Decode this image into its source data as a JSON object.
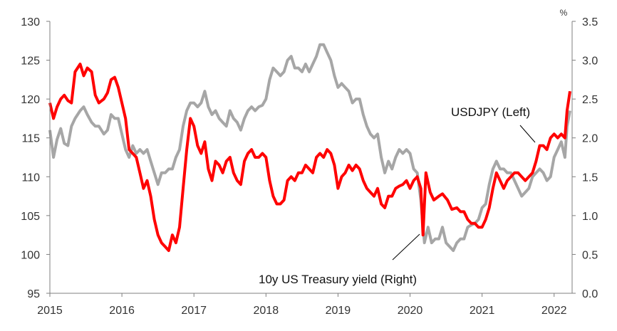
{
  "chart_data": {
    "type": "line",
    "x_label": "",
    "y_left": {
      "range": [
        95,
        130
      ],
      "ticks": [
        95,
        100,
        105,
        110,
        115,
        120,
        125,
        130
      ]
    },
    "y_right": {
      "range": [
        0.0,
        3.5
      ],
      "ticks": [
        "0.0",
        "0.5",
        "1.0",
        "1.5",
        "2.0",
        "2.5",
        "3.0",
        "3.5"
      ],
      "unit": "%"
    },
    "x_ticks": [
      "2015",
      "2016",
      "2017",
      "2018",
      "2019",
      "2020",
      "2021",
      "2022"
    ],
    "x_range": [
      2015.0,
      2022.25
    ],
    "grid": false,
    "series": [
      {
        "name": "USDJPY (Left)",
        "axis": "left",
        "color": "#ff0000",
        "points": [
          [
            2015.0,
            119.5
          ],
          [
            2015.05,
            117.5
          ],
          [
            2015.1,
            119.0
          ],
          [
            2015.15,
            120.0
          ],
          [
            2015.2,
            120.5
          ],
          [
            2015.25,
            119.8
          ],
          [
            2015.3,
            119.5
          ],
          [
            2015.35,
            123.5
          ],
          [
            2015.42,
            124.5
          ],
          [
            2015.47,
            123.0
          ],
          [
            2015.52,
            124.0
          ],
          [
            2015.58,
            123.5
          ],
          [
            2015.63,
            120.5
          ],
          [
            2015.68,
            119.5
          ],
          [
            2015.75,
            120.0
          ],
          [
            2015.8,
            120.8
          ],
          [
            2015.85,
            122.5
          ],
          [
            2015.9,
            122.8
          ],
          [
            2015.95,
            121.5
          ],
          [
            2016.0,
            119.5
          ],
          [
            2016.05,
            117.5
          ],
          [
            2016.1,
            113.5
          ],
          [
            2016.15,
            113.0
          ],
          [
            2016.2,
            112.5
          ],
          [
            2016.25,
            110.5
          ],
          [
            2016.3,
            108.5
          ],
          [
            2016.35,
            109.5
          ],
          [
            2016.4,
            107.5
          ],
          [
            2016.45,
            104.5
          ],
          [
            2016.5,
            102.5
          ],
          [
            2016.55,
            101.5
          ],
          [
            2016.6,
            101.0
          ],
          [
            2016.65,
            100.5
          ],
          [
            2016.7,
            102.5
          ],
          [
            2016.75,
            101.5
          ],
          [
            2016.8,
            103.5
          ],
          [
            2016.85,
            108.5
          ],
          [
            2016.9,
            113.5
          ],
          [
            2016.95,
            117.5
          ],
          [
            2017.0,
            116.5
          ],
          [
            2017.05,
            114.0
          ],
          [
            2017.1,
            113.0
          ],
          [
            2017.15,
            114.5
          ],
          [
            2017.2,
            111.0
          ],
          [
            2017.25,
            109.5
          ],
          [
            2017.3,
            112.0
          ],
          [
            2017.35,
            111.5
          ],
          [
            2017.4,
            110.5
          ],
          [
            2017.45,
            112.0
          ],
          [
            2017.5,
            112.5
          ],
          [
            2017.55,
            110.5
          ],
          [
            2017.6,
            109.5
          ],
          [
            2017.65,
            109.0
          ],
          [
            2017.7,
            112.0
          ],
          [
            2017.75,
            113.0
          ],
          [
            2017.8,
            113.5
          ],
          [
            2017.85,
            112.5
          ],
          [
            2017.9,
            112.5
          ],
          [
            2017.95,
            113.0
          ],
          [
            2018.0,
            112.5
          ],
          [
            2018.05,
            109.5
          ],
          [
            2018.1,
            107.5
          ],
          [
            2018.15,
            106.5
          ],
          [
            2018.2,
            106.5
          ],
          [
            2018.25,
            107.0
          ],
          [
            2018.3,
            109.5
          ],
          [
            2018.35,
            110.0
          ],
          [
            2018.4,
            109.5
          ],
          [
            2018.45,
            110.5
          ],
          [
            2018.5,
            110.5
          ],
          [
            2018.55,
            111.5
          ],
          [
            2018.6,
            111.0
          ],
          [
            2018.65,
            110.5
          ],
          [
            2018.7,
            112.5
          ],
          [
            2018.75,
            113.0
          ],
          [
            2018.8,
            112.5
          ],
          [
            2018.85,
            113.5
          ],
          [
            2018.9,
            113.0
          ],
          [
            2018.95,
            111.5
          ],
          [
            2019.0,
            108.5
          ],
          [
            2019.05,
            110.0
          ],
          [
            2019.1,
            110.5
          ],
          [
            2019.15,
            111.5
          ],
          [
            2019.2,
            110.8
          ],
          [
            2019.25,
            111.5
          ],
          [
            2019.3,
            111.0
          ],
          [
            2019.35,
            109.5
          ],
          [
            2019.4,
            108.5
          ],
          [
            2019.45,
            108.0
          ],
          [
            2019.5,
            107.5
          ],
          [
            2019.55,
            108.5
          ],
          [
            2019.6,
            106.5
          ],
          [
            2019.65,
            106.0
          ],
          [
            2019.7,
            107.5
          ],
          [
            2019.75,
            107.5
          ],
          [
            2019.8,
            108.5
          ],
          [
            2019.85,
            108.8
          ],
          [
            2019.9,
            109.0
          ],
          [
            2019.95,
            109.5
          ],
          [
            2020.0,
            108.5
          ],
          [
            2020.05,
            109.5
          ],
          [
            2020.1,
            110.0
          ],
          [
            2020.15,
            108.5
          ],
          [
            2020.18,
            102.5
          ],
          [
            2020.22,
            110.5
          ],
          [
            2020.28,
            108.0
          ],
          [
            2020.33,
            107.0
          ],
          [
            2020.4,
            107.5
          ],
          [
            2020.45,
            107.8
          ],
          [
            2020.52,
            107.0
          ],
          [
            2020.58,
            105.8
          ],
          [
            2020.65,
            106.0
          ],
          [
            2020.7,
            105.5
          ],
          [
            2020.75,
            105.5
          ],
          [
            2020.8,
            104.5
          ],
          [
            2020.85,
            104.0
          ],
          [
            2020.9,
            104.0
          ],
          [
            2020.95,
            103.5
          ],
          [
            2021.0,
            103.5
          ],
          [
            2021.05,
            104.5
          ],
          [
            2021.1,
            106.0
          ],
          [
            2021.15,
            108.5
          ],
          [
            2021.2,
            110.5
          ],
          [
            2021.25,
            109.5
          ],
          [
            2021.3,
            108.5
          ],
          [
            2021.35,
            109.5
          ],
          [
            2021.4,
            110.0
          ],
          [
            2021.45,
            110.5
          ],
          [
            2021.5,
            110.5
          ],
          [
            2021.55,
            110.0
          ],
          [
            2021.6,
            109.5
          ],
          [
            2021.65,
            110.0
          ],
          [
            2021.7,
            110.5
          ],
          [
            2021.75,
            112.0
          ],
          [
            2021.8,
            114.0
          ],
          [
            2021.85,
            114.0
          ],
          [
            2021.9,
            113.5
          ],
          [
            2021.95,
            115.0
          ],
          [
            2022.0,
            115.5
          ],
          [
            2022.05,
            115.0
          ],
          [
            2022.1,
            115.5
          ],
          [
            2022.15,
            115.0
          ],
          [
            2022.18,
            118.5
          ],
          [
            2022.22,
            121.0
          ]
        ]
      },
      {
        "name": "10y US Treasury yield (Right)",
        "axis": "right",
        "color": "#a6a6a6",
        "points": [
          [
            2015.0,
            2.1
          ],
          [
            2015.05,
            1.75
          ],
          [
            2015.1,
            1.98
          ],
          [
            2015.15,
            2.12
          ],
          [
            2015.2,
            1.93
          ],
          [
            2015.25,
            1.9
          ],
          [
            2015.3,
            2.15
          ],
          [
            2015.35,
            2.25
          ],
          [
            2015.42,
            2.35
          ],
          [
            2015.47,
            2.4
          ],
          [
            2015.52,
            2.3
          ],
          [
            2015.58,
            2.2
          ],
          [
            2015.63,
            2.15
          ],
          [
            2015.68,
            2.15
          ],
          [
            2015.75,
            2.05
          ],
          [
            2015.8,
            2.1
          ],
          [
            2015.85,
            2.3
          ],
          [
            2015.9,
            2.25
          ],
          [
            2015.95,
            2.25
          ],
          [
            2016.0,
            2.05
          ],
          [
            2016.05,
            1.85
          ],
          [
            2016.1,
            1.75
          ],
          [
            2016.15,
            1.9
          ],
          [
            2016.2,
            1.8
          ],
          [
            2016.25,
            1.85
          ],
          [
            2016.3,
            1.8
          ],
          [
            2016.35,
            1.85
          ],
          [
            2016.4,
            1.7
          ],
          [
            2016.45,
            1.55
          ],
          [
            2016.5,
            1.4
          ],
          [
            2016.55,
            1.55
          ],
          [
            2016.6,
            1.55
          ],
          [
            2016.65,
            1.6
          ],
          [
            2016.7,
            1.6
          ],
          [
            2016.75,
            1.75
          ],
          [
            2016.8,
            1.85
          ],
          [
            2016.85,
            2.15
          ],
          [
            2016.9,
            2.35
          ],
          [
            2016.95,
            2.45
          ],
          [
            2017.0,
            2.45
          ],
          [
            2017.05,
            2.4
          ],
          [
            2017.1,
            2.45
          ],
          [
            2017.15,
            2.6
          ],
          [
            2017.2,
            2.4
          ],
          [
            2017.25,
            2.3
          ],
          [
            2017.3,
            2.35
          ],
          [
            2017.35,
            2.25
          ],
          [
            2017.4,
            2.2
          ],
          [
            2017.45,
            2.15
          ],
          [
            2017.5,
            2.35
          ],
          [
            2017.55,
            2.25
          ],
          [
            2017.6,
            2.2
          ],
          [
            2017.65,
            2.1
          ],
          [
            2017.7,
            2.25
          ],
          [
            2017.75,
            2.35
          ],
          [
            2017.8,
            2.4
          ],
          [
            2017.85,
            2.35
          ],
          [
            2017.9,
            2.4
          ],
          [
            2017.95,
            2.42
          ],
          [
            2018.0,
            2.5
          ],
          [
            2018.05,
            2.75
          ],
          [
            2018.1,
            2.9
          ],
          [
            2018.15,
            2.85
          ],
          [
            2018.2,
            2.8
          ],
          [
            2018.25,
            2.85
          ],
          [
            2018.3,
            3.0
          ],
          [
            2018.35,
            3.05
          ],
          [
            2018.4,
            2.9
          ],
          [
            2018.45,
            2.9
          ],
          [
            2018.5,
            2.85
          ],
          [
            2018.55,
            2.95
          ],
          [
            2018.6,
            2.85
          ],
          [
            2018.65,
            2.95
          ],
          [
            2018.7,
            3.05
          ],
          [
            2018.75,
            3.2
          ],
          [
            2018.8,
            3.2
          ],
          [
            2018.85,
            3.1
          ],
          [
            2018.9,
            3.0
          ],
          [
            2018.95,
            2.8
          ],
          [
            2019.0,
            2.65
          ],
          [
            2019.05,
            2.7
          ],
          [
            2019.1,
            2.65
          ],
          [
            2019.15,
            2.6
          ],
          [
            2019.2,
            2.45
          ],
          [
            2019.25,
            2.5
          ],
          [
            2019.3,
            2.5
          ],
          [
            2019.35,
            2.3
          ],
          [
            2019.4,
            2.15
          ],
          [
            2019.45,
            2.05
          ],
          [
            2019.5,
            2.0
          ],
          [
            2019.55,
            2.05
          ],
          [
            2019.6,
            1.75
          ],
          [
            2019.65,
            1.55
          ],
          [
            2019.7,
            1.7
          ],
          [
            2019.75,
            1.6
          ],
          [
            2019.8,
            1.75
          ],
          [
            2019.85,
            1.85
          ],
          [
            2019.9,
            1.8
          ],
          [
            2019.95,
            1.85
          ],
          [
            2020.0,
            1.8
          ],
          [
            2020.05,
            1.6
          ],
          [
            2020.1,
            1.55
          ],
          [
            2020.15,
            1.2
          ],
          [
            2020.2,
            0.65
          ],
          [
            2020.25,
            0.85
          ],
          [
            2020.3,
            0.65
          ],
          [
            2020.35,
            0.7
          ],
          [
            2020.4,
            0.7
          ],
          [
            2020.45,
            0.85
          ],
          [
            2020.5,
            0.65
          ],
          [
            2020.55,
            0.6
          ],
          [
            2020.6,
            0.55
          ],
          [
            2020.65,
            0.65
          ],
          [
            2020.7,
            0.7
          ],
          [
            2020.75,
            0.7
          ],
          [
            2020.8,
            0.85
          ],
          [
            2020.85,
            0.88
          ],
          [
            2020.9,
            0.9
          ],
          [
            2020.95,
            0.95
          ],
          [
            2021.0,
            1.1
          ],
          [
            2021.05,
            1.15
          ],
          [
            2021.1,
            1.4
          ],
          [
            2021.15,
            1.6
          ],
          [
            2021.2,
            1.7
          ],
          [
            2021.25,
            1.6
          ],
          [
            2021.3,
            1.6
          ],
          [
            2021.35,
            1.55
          ],
          [
            2021.4,
            1.55
          ],
          [
            2021.45,
            1.45
          ],
          [
            2021.5,
            1.35
          ],
          [
            2021.55,
            1.25
          ],
          [
            2021.6,
            1.3
          ],
          [
            2021.65,
            1.35
          ],
          [
            2021.7,
            1.5
          ],
          [
            2021.75,
            1.55
          ],
          [
            2021.8,
            1.6
          ],
          [
            2021.85,
            1.55
          ],
          [
            2021.9,
            1.45
          ],
          [
            2021.95,
            1.5
          ],
          [
            2022.0,
            1.75
          ],
          [
            2022.05,
            1.85
          ],
          [
            2022.1,
            1.95
          ],
          [
            2022.15,
            1.75
          ],
          [
            2022.18,
            2.15
          ],
          [
            2022.22,
            2.35
          ]
        ]
      }
    ],
    "annotations": [
      "USDJPY (Left)",
      "10y US Treasury yield (Right)"
    ]
  }
}
